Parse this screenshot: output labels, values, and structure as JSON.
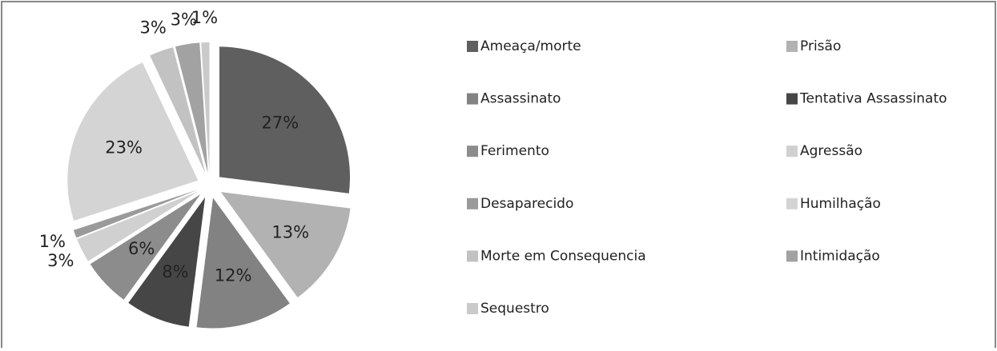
{
  "chart_data": {
    "type": "pie",
    "categories": [
      "Ameaça/morte",
      "Prisão",
      "Assassinato",
      "Tentativa Assassinato",
      "Ferimento",
      "Agressão",
      "Desaparecido",
      "Humilhação",
      "Morte em Consequencia",
      "Intimidação",
      "Sequestro"
    ],
    "values": [
      27,
      13,
      12,
      8,
      6,
      3,
      1,
      23,
      3,
      3,
      1
    ],
    "value_labels": [
      "27%",
      "13%",
      "12%",
      "8%",
      "6%",
      "3%",
      "1%",
      "23%",
      "3%",
      "3%",
      "1%"
    ],
    "colors": [
      "#5f5f5f",
      "#b2b2b2",
      "#828282",
      "#464646",
      "#8c8c8c",
      "#d0d0d0",
      "#9a9a9a",
      "#d4d4d4",
      "#c2c2c2",
      "#a2a2a2",
      "#cacaca"
    ],
    "legend": "right"
  }
}
